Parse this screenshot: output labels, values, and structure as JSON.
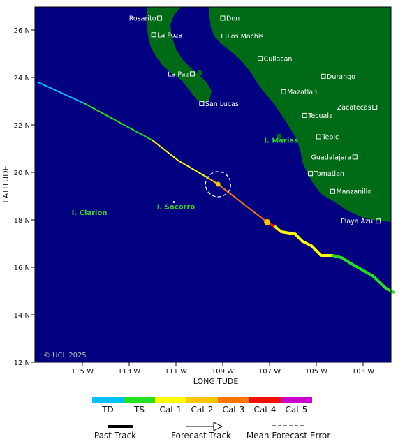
{
  "axes": {
    "xlabel": "LONGITUDE",
    "ylabel": "LATITUDE",
    "x_ticks": [
      "115 W",
      "113 W",
      "111 W",
      "109 W",
      "107 W",
      "105 W",
      "103 W"
    ],
    "y_ticks": [
      "26 N",
      "24 N",
      "22 N",
      "20 N",
      "18 N",
      "16 N",
      "14 N",
      "12 N"
    ]
  },
  "copyright": "© UCL 2025",
  "cities": [
    {
      "name": "Rosarito",
      "lon": -111.7,
      "lat": 26.5,
      "label_side": "left"
    },
    {
      "name": "Don",
      "lon": -109.0,
      "lat": 26.5,
      "label_side": "right"
    },
    {
      "name": "La Poza",
      "lon": -111.95,
      "lat": 25.8,
      "label_side": "right"
    },
    {
      "name": "Los Mochis",
      "lon": -108.95,
      "lat": 25.75,
      "label_side": "right"
    },
    {
      "name": "Culiacan",
      "lon": -107.4,
      "lat": 24.8,
      "label_side": "right"
    },
    {
      "name": "La Paz",
      "lon": -110.3,
      "lat": 24.15,
      "label_side": "left"
    },
    {
      "name": "Durango",
      "lon": -104.7,
      "lat": 24.05,
      "label_side": "right"
    },
    {
      "name": "Mazatlan",
      "lon": -106.4,
      "lat": 23.4,
      "label_side": "right"
    },
    {
      "name": "San Lucas",
      "lon": -109.9,
      "lat": 22.9,
      "label_side": "right"
    },
    {
      "name": "Zacatecas",
      "lon": -102.5,
      "lat": 22.75,
      "label_side": "left"
    },
    {
      "name": "Tecuala",
      "lon": -105.5,
      "lat": 22.4,
      "label_side": "right"
    },
    {
      "name": "Tepic",
      "lon": -104.9,
      "lat": 21.5,
      "label_side": "right"
    },
    {
      "name": "Guadalajara",
      "lon": -103.35,
      "lat": 20.65,
      "label_side": "left"
    },
    {
      "name": "Tomatlan",
      "lon": -105.25,
      "lat": 19.95,
      "label_side": "right"
    },
    {
      "name": "Manzanillo",
      "lon": -104.3,
      "lat": 19.2,
      "label_side": "right"
    },
    {
      "name": "Playa Azul",
      "lon": -102.35,
      "lat": 17.95,
      "label_side": "left"
    }
  ],
  "islands": [
    {
      "name": "I. Marias",
      "lon": -106.5,
      "lat": 21.25
    },
    {
      "name": "I. Socorro",
      "lon": -111.0,
      "lat": 18.45
    },
    {
      "name": "I. Clarion",
      "lon": -114.7,
      "lat": 18.2
    }
  ],
  "track": {
    "points": [
      {
        "lon": -116.9,
        "lat": 23.8,
        "cat": "TD"
      },
      {
        "lon": -114.9,
        "lat": 22.9,
        "cat": "TS"
      },
      {
        "lon": -112.0,
        "lat": 21.35,
        "cat": "Cat 1"
      },
      {
        "lon": -110.9,
        "lat": 20.5,
        "cat": "Cat 1"
      },
      {
        "lon": -109.6,
        "lat": 19.75,
        "cat": "Cat 2"
      },
      {
        "lon": -109.2,
        "lat": 19.5,
        "cat": "Cat 3"
      },
      {
        "lon": -107.1,
        "lat": 17.9,
        "cat": "Cat 4"
      },
      {
        "lon": -106.75,
        "lat": 17.7,
        "cat": "Cat 1"
      },
      {
        "lon": -106.5,
        "lat": 17.5,
        "cat": "Cat 1"
      },
      {
        "lon": -105.9,
        "lat": 17.4,
        "cat": "Cat 1"
      },
      {
        "lon": -105.6,
        "lat": 17.1,
        "cat": "Cat 1"
      },
      {
        "lon": -105.2,
        "lat": 16.9,
        "cat": "Cat 1"
      },
      {
        "lon": -104.8,
        "lat": 16.5,
        "cat": "Cat 1"
      },
      {
        "lon": -104.3,
        "lat": 16.5,
        "cat": "TS"
      },
      {
        "lon": -103.9,
        "lat": 16.4,
        "cat": "TS"
      },
      {
        "lon": -103.5,
        "lat": 16.15,
        "cat": "TS"
      },
      {
        "lon": -102.6,
        "lat": 15.65,
        "cat": "TS"
      },
      {
        "lon": -102.0,
        "lat": 15.1,
        "cat": "TS"
      },
      {
        "lon": -101.7,
        "lat": 14.95,
        "cat": "TS"
      }
    ],
    "current_position": {
      "lon": -109.2,
      "lat": 19.5
    },
    "mean_forecast_error": {
      "lon": -109.2,
      "lat": 19.5
    },
    "highlight_point": {
      "lon": -107.1,
      "lat": 17.9
    }
  },
  "legend": {
    "categories": [
      {
        "label": "TD",
        "color": "#00bfff"
      },
      {
        "label": "TS",
        "color": "#22e11e"
      },
      {
        "label": "Cat 1",
        "color": "#ffff00"
      },
      {
        "label": "Cat 2",
        "color": "#ffc400"
      },
      {
        "label": "Cat 3",
        "color": "#ff7700"
      },
      {
        "label": "Cat 4",
        "color": "#ee1100"
      },
      {
        "label": "Cat 5",
        "color": "#cc00cc"
      }
    ],
    "past_track": "Past Track",
    "forecast_track": "Forecast Track",
    "mean_error": "Mean Forecast Error"
  },
  "colors": {
    "ocean": "#000080",
    "land": "#006b16",
    "frame": "#000000"
  }
}
